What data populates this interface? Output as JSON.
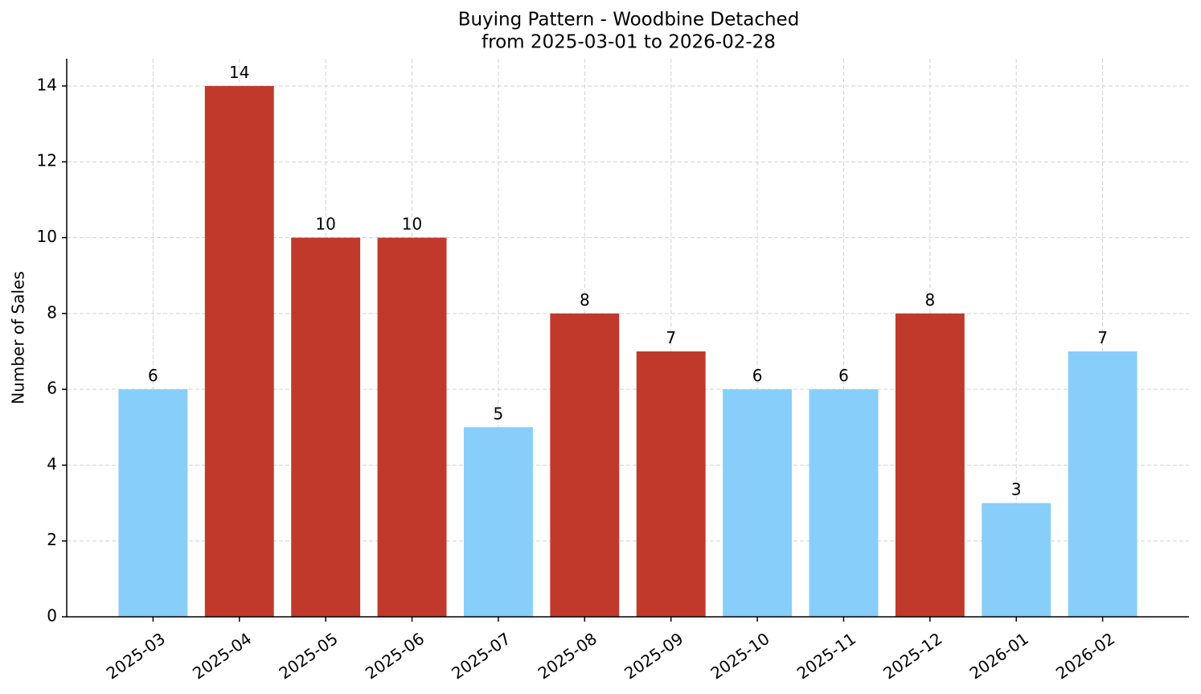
{
  "chart_data": {
    "type": "bar",
    "title": "Buying Pattern - Woodbine Detached",
    "subtitle": "from 2025-03-01 to 2026-02-28",
    "y_label": "Number of Sales",
    "categories": [
      "2025-03",
      "2025-04",
      "2025-05",
      "2025-06",
      "2025-07",
      "2025-08",
      "2025-09",
      "2025-10",
      "2025-11",
      "2025-12",
      "2026-01",
      "2026-02"
    ],
    "values": [
      6,
      14,
      10,
      10,
      5,
      8,
      7,
      6,
      6,
      8,
      3,
      7
    ],
    "colors": [
      "#87cefa",
      "#c0392b",
      "#c0392b",
      "#c0392b",
      "#87cefa",
      "#c0392b",
      "#c0392b",
      "#87cefa",
      "#87cefa",
      "#c0392b",
      "#87cefa",
      "#87cefa"
    ],
    "ylim": [
      0,
      14.72
    ],
    "yticks": [
      0,
      2,
      4,
      6,
      8,
      10,
      12,
      14
    ],
    "grid": true
  }
}
